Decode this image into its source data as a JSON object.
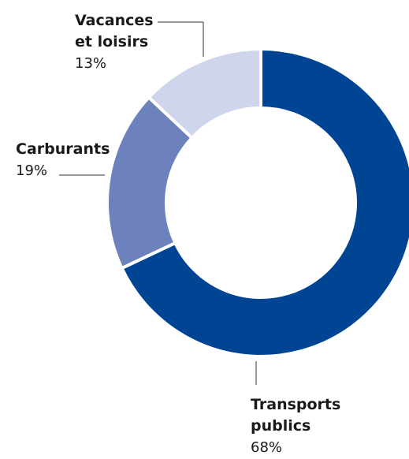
{
  "chart_data": {
    "type": "donut",
    "categories": [
      "Transports publics",
      "Carburants",
      "Vacances et loisirs"
    ],
    "values": [
      68,
      19,
      13
    ],
    "value_labels": [
      "68%",
      "19%",
      "13%"
    ],
    "colors": [
      "#004494",
      "#6d82bd",
      "#cfd5ea"
    ]
  }
}
